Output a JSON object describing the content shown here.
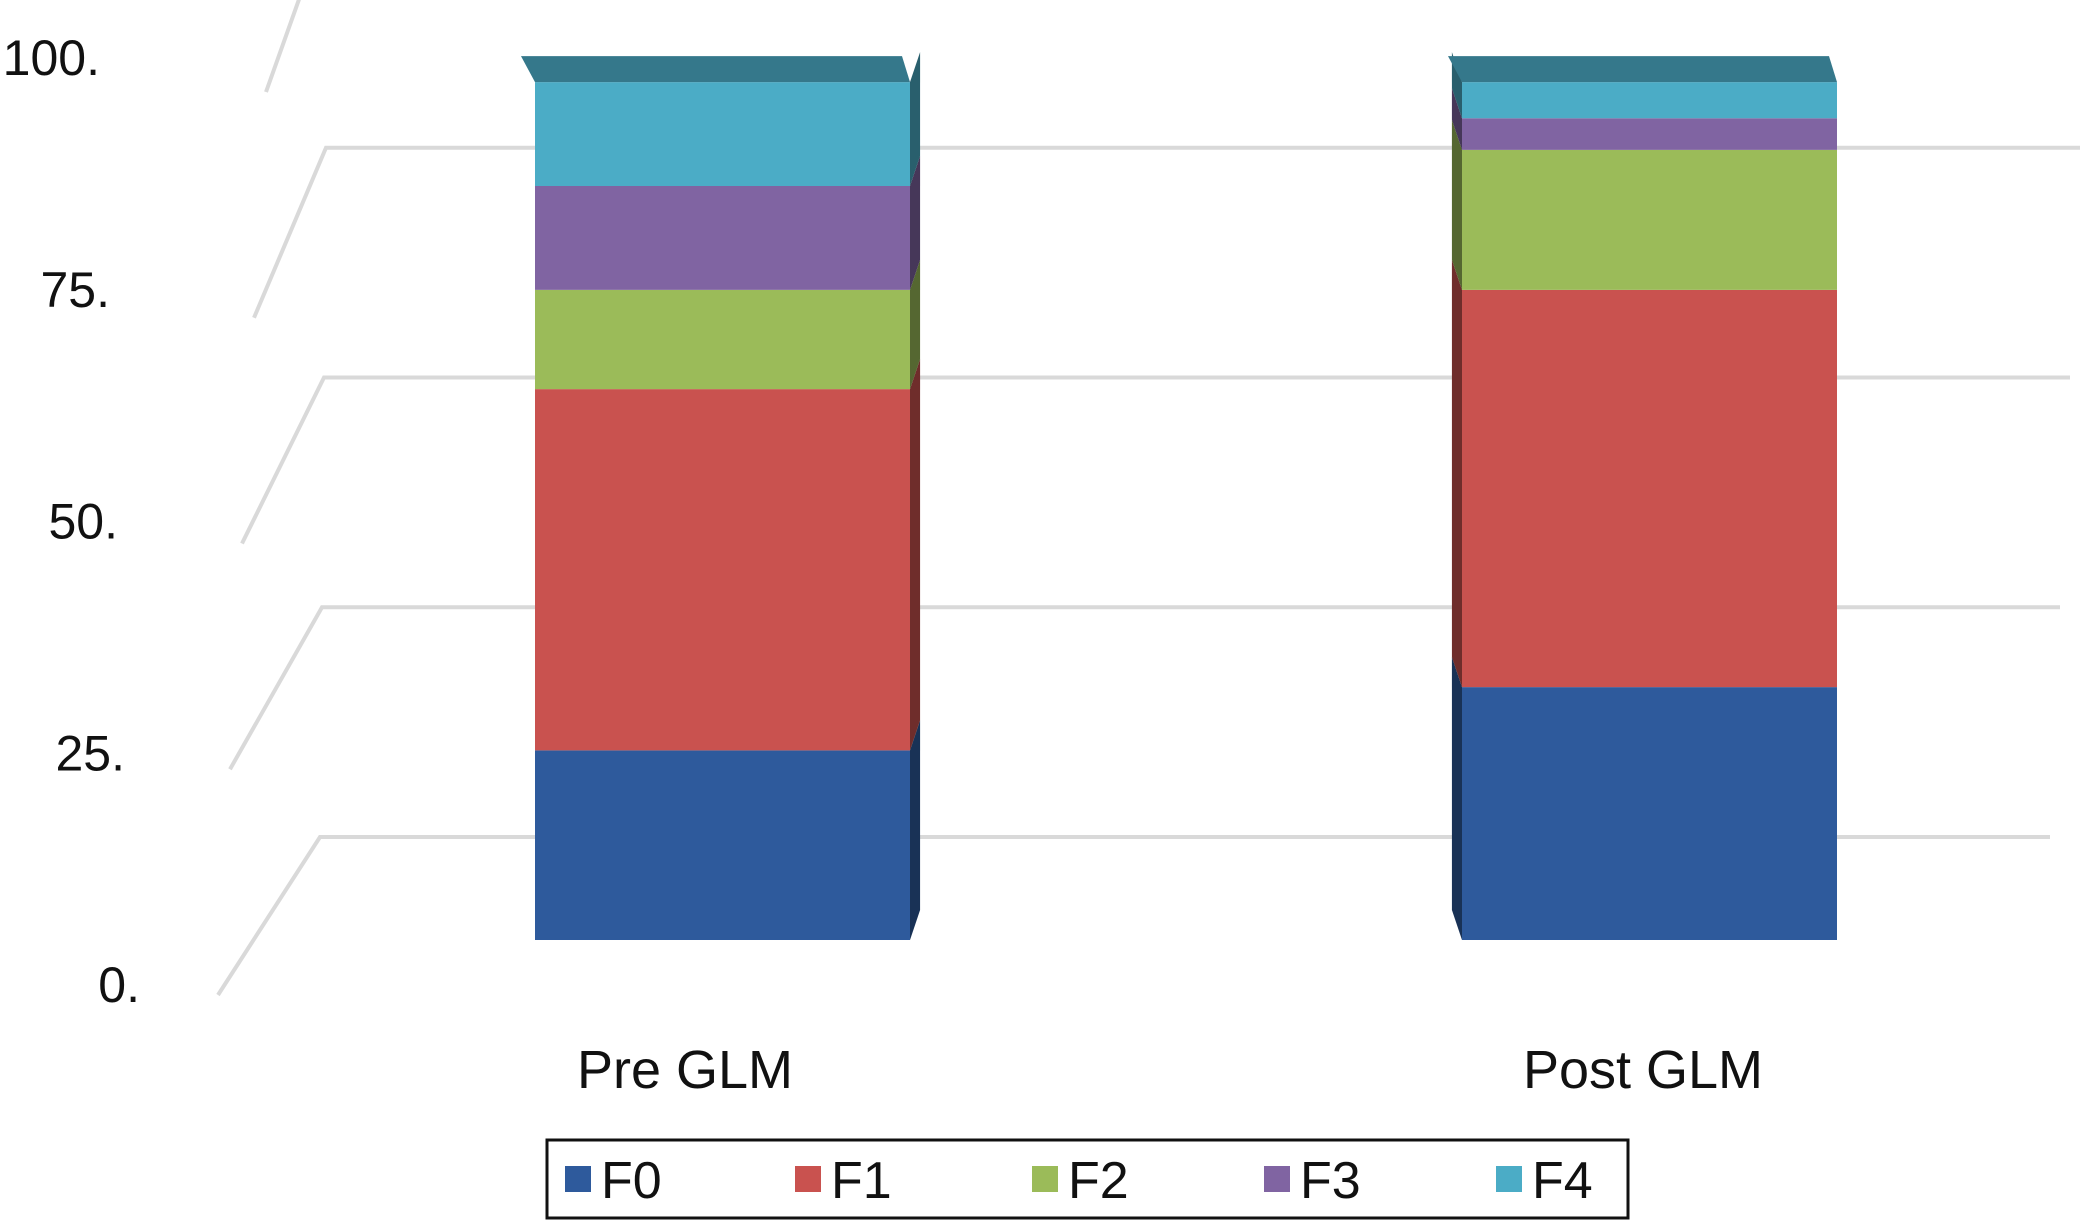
{
  "chart_data": {
    "type": "bar",
    "stacked": true,
    "style": "3d",
    "categories": [
      "Pre GLM",
      "Post GLM"
    ],
    "series": [
      {
        "name": "F0",
        "color": "#2e5a9c",
        "values": [
          21,
          28
        ]
      },
      {
        "name": "F1",
        "color": "#c9524f",
        "values": [
          40,
          44
        ]
      },
      {
        "name": "F2",
        "color": "#9bbb59",
        "values": [
          11,
          15.5
        ]
      },
      {
        "name": "F3",
        "color": "#8064a2",
        "values": [
          11.5,
          3.5
        ]
      },
      {
        "name": "F4",
        "color": "#4bacc6",
        "values": [
          11.5,
          4
        ]
      }
    ],
    "yticks": [
      "0.",
      "25.",
      "50.",
      "75.",
      "100."
    ],
    "ylim": [
      0,
      100
    ],
    "grid": true,
    "legend": "bottom"
  }
}
